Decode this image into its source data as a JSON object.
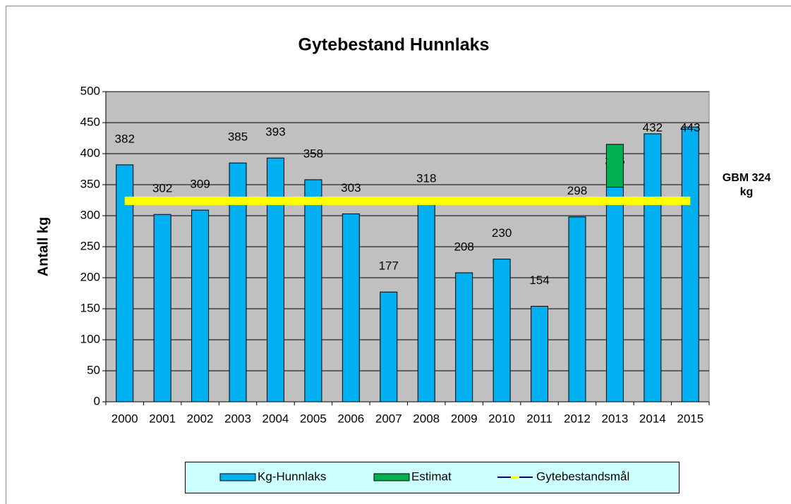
{
  "chart_data": {
    "type": "bar",
    "title": "Gytebestand Hunnlaks",
    "y_label": "Antall kg",
    "annotation": "GBM 324 kg",
    "categories": [
      "2000",
      "2001",
      "2002",
      "2003",
      "2004",
      "2005",
      "2006",
      "2007",
      "2008",
      "2009",
      "2010",
      "2011",
      "2012",
      "2013",
      "2014",
      "2015"
    ],
    "series": [
      {
        "name": "Kg-Hunnlaks",
        "color": "#00b0f0",
        "values": [
          382,
          302,
          309,
          385,
          393,
          358,
          303,
          177,
          318,
          208,
          230,
          154,
          298,
          346,
          432,
          443
        ]
      },
      {
        "name": "Estimat",
        "color": "#00b050",
        "values": [
          null,
          null,
          null,
          null,
          null,
          null,
          null,
          null,
          null,
          null,
          null,
          null,
          null,
          69,
          null,
          null
        ]
      },
      {
        "name": "Gytebestandsmål",
        "type": "line",
        "color": "#ffff00",
        "values": [
          324,
          324,
          324,
          324,
          324,
          324,
          324,
          324,
          324,
          324,
          324,
          324,
          324,
          324,
          324,
          324
        ]
      }
    ],
    "ylim": [
      0,
      500
    ],
    "yticks": [
      0,
      50,
      100,
      150,
      200,
      250,
      300,
      350,
      400,
      450,
      500
    ],
    "grid": true,
    "stacked": true,
    "legend": "bottom"
  }
}
